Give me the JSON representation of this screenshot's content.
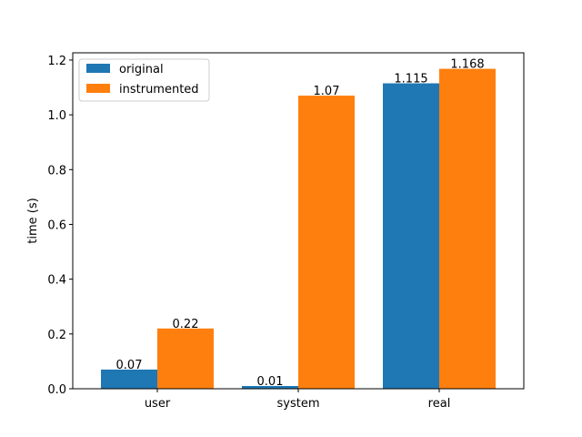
{
  "chart_data": {
    "type": "bar",
    "categories": [
      "user",
      "system",
      "real"
    ],
    "series": [
      {
        "name": "original",
        "values": [
          0.07,
          0.01,
          1.115
        ],
        "labels": [
          "0.07",
          "0.01",
          "1.115"
        ],
        "color": "#1f77b4"
      },
      {
        "name": "instrumented",
        "values": [
          0.22,
          1.07,
          1.168
        ],
        "labels": [
          "0.22",
          "1.07",
          "1.168"
        ],
        "color": "#ff7f0e"
      }
    ],
    "xlabel": "",
    "ylabel": "time (s)",
    "ylim": [
      0,
      1.2264
    ],
    "yticks": [
      0.0,
      0.2,
      0.4,
      0.6,
      0.8,
      1.0,
      1.2
    ],
    "ytick_labels": [
      "0.0",
      "0.2",
      "0.4",
      "0.6",
      "0.8",
      "1.0",
      "1.2"
    ],
    "legend_position": "top-left",
    "grid": false
  }
}
